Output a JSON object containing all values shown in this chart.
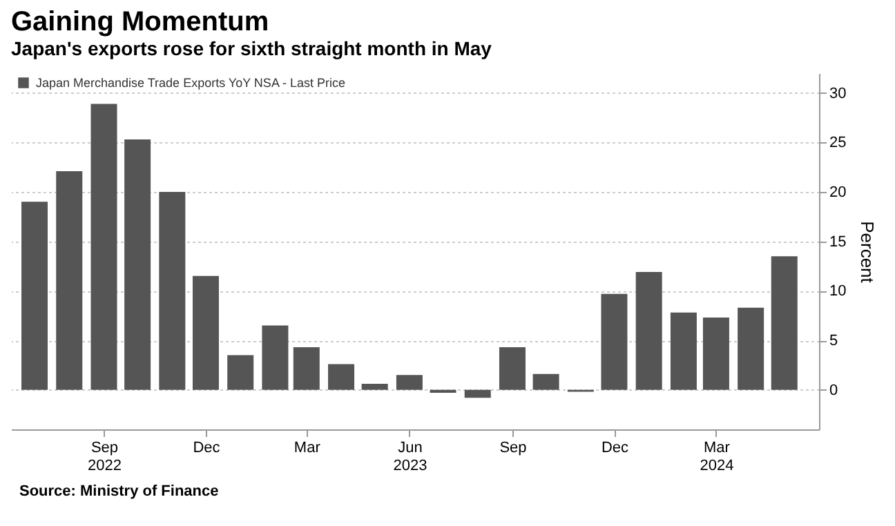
{
  "chart_data": {
    "type": "bar",
    "title": "Gaining Momentum",
    "subtitle": "Japan's exports rose for sixth straight month in May",
    "x": [
      "2022-07",
      "2022-08",
      "2022-09",
      "2022-10",
      "2022-11",
      "2022-12",
      "2023-01",
      "2023-02",
      "2023-03",
      "2023-04",
      "2023-05",
      "2023-06",
      "2023-07",
      "2023-08",
      "2023-09",
      "2023-10",
      "2023-11",
      "2023-12",
      "2024-01",
      "2024-02",
      "2024-03",
      "2024-04",
      "2024-05"
    ],
    "series": [
      {
        "name": "Japan Merchandise Trade Exports YoY NSA - Last Price",
        "color": "#555555",
        "values": [
          19.0,
          22.1,
          28.9,
          25.3,
          20.0,
          11.5,
          3.5,
          6.5,
          4.3,
          2.6,
          0.6,
          1.5,
          -0.3,
          -0.8,
          4.3,
          1.6,
          -0.2,
          9.7,
          11.9,
          7.8,
          7.3,
          8.3,
          13.5
        ]
      }
    ],
    "xlim": [
      "2022-06-10",
      "2024-06-01"
    ],
    "xticks": [
      {
        "value": "2022-09",
        "label": "Sep\n2022"
      },
      {
        "value": "2022-12",
        "label": "Dec"
      },
      {
        "value": "2023-03",
        "label": "Mar"
      },
      {
        "value": "2023-06",
        "label": "Jun\n2023"
      },
      {
        "value": "2023-09",
        "label": "Sep"
      },
      {
        "value": "2023-12",
        "label": "Dec"
      },
      {
        "value": "2024-03",
        "label": "Mar\n2024"
      }
    ],
    "ylim": [
      -4,
      32
    ],
    "yticks": [
      0,
      5,
      10,
      15,
      20,
      25,
      30
    ],
    "ylabel": "Percent",
    "grid": "y",
    "legend": "top left",
    "annotations": [
      "Source: Ministry of Finance"
    ]
  }
}
